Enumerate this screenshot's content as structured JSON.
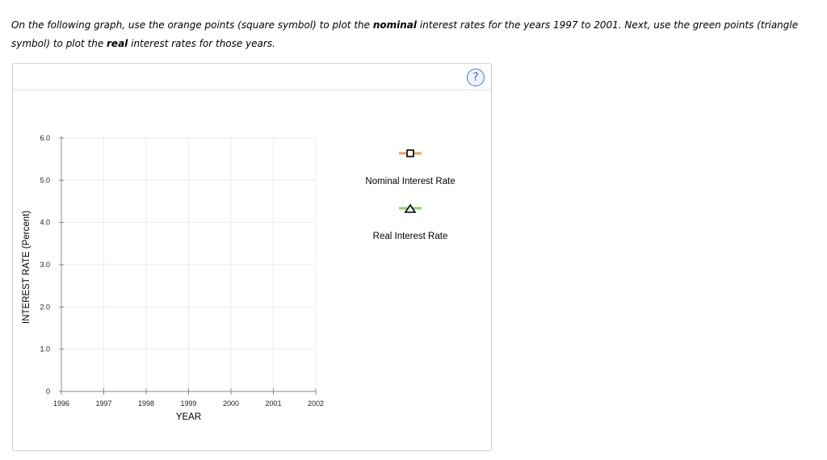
{
  "instructions": {
    "part1": "On the following graph, use the orange points (square symbol) to plot the ",
    "bold1": "nominal",
    "part2": " interest rates for the years 1997 to 2001. Next, use the green points (triangle symbol) to plot the ",
    "bold2": "real",
    "part3": " interest rates for those years."
  },
  "help_button": {
    "label": "?",
    "icon": "question-mark-icon"
  },
  "colors": {
    "orange": "#f0a04b",
    "green": "#8fcf6a",
    "grid": "#ececec",
    "axis": "#888888"
  },
  "chart_data": {
    "type": "scatter",
    "xlabel": "YEAR",
    "ylabel": "INTEREST RATE (Percent)",
    "x_ticks": [
      "1996",
      "1997",
      "1998",
      "1999",
      "2000",
      "2001",
      "2002"
    ],
    "y_ticks": [
      "0",
      "1.0",
      "2.0",
      "3.0",
      "4.0",
      "5.0",
      "6.0"
    ],
    "xlim": [
      1996,
      2002
    ],
    "ylim": [
      0,
      6
    ],
    "grid": true,
    "series": [
      {
        "name": "Nominal Interest Rate",
        "marker": "square",
        "color": "#f0a04b",
        "values": []
      },
      {
        "name": "Real Interest Rate",
        "marker": "triangle",
        "color": "#8fcf6a",
        "values": []
      }
    ],
    "legend_position": "right"
  }
}
